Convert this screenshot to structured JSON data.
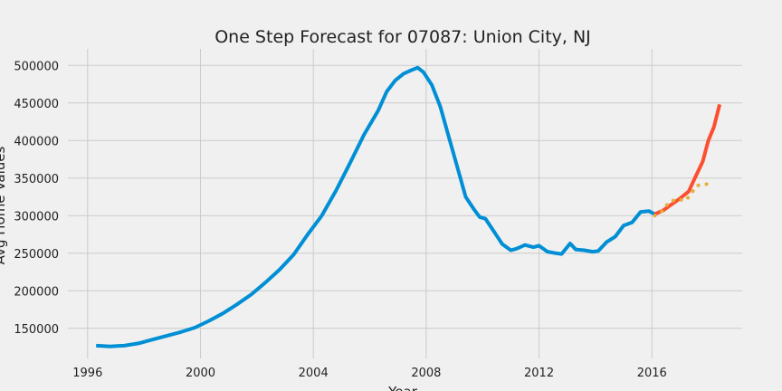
{
  "chart_data": {
    "type": "line",
    "title": "One Step Forecast for 07087: Union City, NJ",
    "xlabel": "Year",
    "ylabel": "Avg Home Values",
    "xlim": [
      1995.3,
      2019.2
    ],
    "ylim": [
      110000,
      522000
    ],
    "grid": true,
    "x_ticks": [
      1996,
      2000,
      2004,
      2008,
      2012,
      2016
    ],
    "y_ticks": [
      150000,
      200000,
      250000,
      300000,
      350000,
      400000,
      450000,
      500000
    ],
    "colors": {
      "background": "#f0f0f0",
      "grid": "#cbcbcb",
      "observed": "#008fd5",
      "actual": "#fc4f30",
      "forecast": "#e5ae38"
    },
    "series": [
      {
        "style": "solid",
        "color": "#008fd5",
        "points": [
          [
            1996.3,
            127000
          ],
          [
            1996.8,
            126000
          ],
          [
            1997.3,
            127000
          ],
          [
            1997.8,
            130000
          ],
          [
            1998.3,
            135000
          ],
          [
            1998.8,
            140000
          ],
          [
            1999.3,
            145000
          ],
          [
            1999.8,
            151000
          ],
          [
            2000.3,
            160000
          ],
          [
            2000.8,
            170000
          ],
          [
            2001.3,
            182000
          ],
          [
            2001.8,
            195000
          ],
          [
            2002.3,
            211000
          ],
          [
            2002.8,
            228000
          ],
          [
            2003.3,
            248000
          ],
          [
            2003.8,
            275000
          ],
          [
            2004.3,
            300000
          ],
          [
            2004.8,
            333000
          ],
          [
            2005.3,
            370000
          ],
          [
            2005.8,
            408000
          ],
          [
            2006.3,
            440000
          ],
          [
            2006.6,
            465000
          ],
          [
            2006.9,
            480000
          ],
          [
            2007.2,
            489000
          ],
          [
            2007.5,
            494000
          ],
          [
            2007.7,
            497000
          ],
          [
            2007.9,
            491000
          ],
          [
            2008.2,
            474000
          ],
          [
            2008.5,
            445000
          ],
          [
            2008.8,
            405000
          ],
          [
            2009.1,
            365000
          ],
          [
            2009.4,
            325000
          ],
          [
            2009.7,
            308000
          ],
          [
            2009.9,
            298000
          ],
          [
            2010.1,
            296000
          ],
          [
            2010.4,
            279000
          ],
          [
            2010.7,
            262000
          ],
          [
            2011.0,
            254000
          ],
          [
            2011.2,
            256000
          ],
          [
            2011.5,
            261000
          ],
          [
            2011.8,
            258000
          ],
          [
            2012.0,
            260000
          ],
          [
            2012.3,
            252000
          ],
          [
            2012.6,
            250000
          ],
          [
            2012.8,
            249000
          ],
          [
            2013.1,
            263000
          ],
          [
            2013.3,
            255000
          ],
          [
            2013.6,
            254000
          ],
          [
            2013.9,
            252000
          ],
          [
            2014.1,
            253000
          ],
          [
            2014.4,
            265000
          ],
          [
            2014.7,
            272000
          ],
          [
            2015.0,
            287000
          ],
          [
            2015.3,
            291000
          ],
          [
            2015.6,
            305000
          ],
          [
            2015.9,
            306000
          ],
          [
            2016.1,
            302000
          ]
        ]
      },
      {
        "style": "solid",
        "color": "#fc4f30",
        "points": [
          [
            2016.1,
            302000
          ],
          [
            2016.4,
            307000
          ],
          [
            2016.7,
            315000
          ],
          [
            2017.0,
            323000
          ],
          [
            2017.3,
            332000
          ],
          [
            2017.5,
            348000
          ],
          [
            2017.8,
            372000
          ],
          [
            2018.0,
            400000
          ],
          [
            2018.2,
            418000
          ],
          [
            2018.4,
            448000
          ]
        ]
      },
      {
        "style": "dotted",
        "color": "#e5ae38",
        "points": [
          [
            2016.1,
            300000
          ],
          [
            2016.4,
            307000
          ],
          [
            2016.6,
            318000
          ],
          [
            2016.9,
            322000
          ],
          [
            2017.2,
            320000
          ],
          [
            2017.4,
            330000
          ],
          [
            2017.6,
            340000
          ],
          [
            2017.9,
            342000
          ],
          [
            2018.2,
            341000
          ]
        ]
      }
    ]
  }
}
